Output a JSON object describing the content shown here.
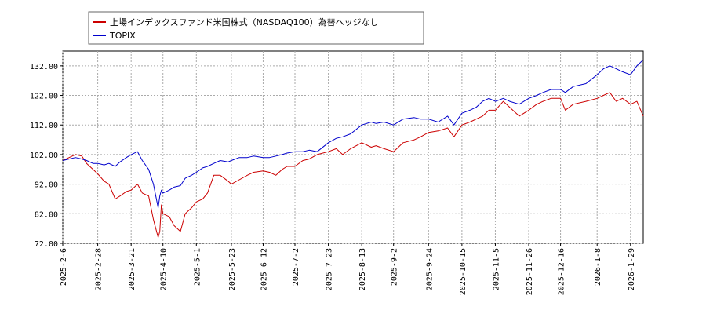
{
  "chart_data": {
    "type": "line",
    "x_ticks": [
      "2025-2-6",
      "2025-2-28",
      "2025-3-21",
      "2025-4-10",
      "2025-5-1",
      "2025-5-23",
      "2025-6-12",
      "2025-7-2",
      "2025-7-23",
      "2025-8-13",
      "2025-9-2",
      "2025-9-24",
      "2025-10-15",
      "2025-11-5",
      "2025-11-26",
      "2025-12-16",
      "2026-1-8",
      "2026-1-29"
    ],
    "y_ticks": [
      "72.00",
      "82.00",
      "92.00",
      "102.00",
      "112.00",
      "122.00",
      "132.00"
    ],
    "ylim": [
      72,
      137
    ],
    "grid": true,
    "legend_position": "top-left",
    "series": [
      {
        "name": "上場インデックスファンド米国株式（NASDAQ100）為替ヘッジなし",
        "color": "#cc0000",
        "anchors": [
          [
            "2025-2-6",
            100
          ],
          [
            "2025-2-10",
            101
          ],
          [
            "2025-2-14",
            102
          ],
          [
            "2025-2-18",
            101.5
          ],
          [
            "2025-2-21",
            99
          ],
          [
            "2025-2-25",
            97
          ],
          [
            "2025-2-28",
            95.5
          ],
          [
            "2025-3-4",
            93
          ],
          [
            "2025-3-7",
            92
          ],
          [
            "2025-3-11",
            87
          ],
          [
            "2025-3-14",
            88
          ],
          [
            "2025-3-18",
            89.5
          ],
          [
            "2025-3-21",
            90
          ],
          [
            "2025-3-25",
            92
          ],
          [
            "2025-3-28",
            89
          ],
          [
            "2025-4-1",
            88
          ],
          [
            "2025-4-4",
            80
          ],
          [
            "2025-4-7",
            74
          ],
          [
            "2025-4-8",
            76
          ],
          [
            "2025-4-9",
            85
          ],
          [
            "2025-4-10",
            82
          ],
          [
            "2025-4-14",
            81
          ],
          [
            "2025-4-17",
            78
          ],
          [
            "2025-4-21",
            76
          ],
          [
            "2025-4-24",
            82
          ],
          [
            "2025-4-28",
            84
          ],
          [
            "2025-5-1",
            86
          ],
          [
            "2025-5-5",
            87
          ],
          [
            "2025-5-8",
            89
          ],
          [
            "2025-5-12",
            95
          ],
          [
            "2025-5-16",
            95
          ],
          [
            "2025-5-21",
            93
          ],
          [
            "2025-5-23",
            92
          ],
          [
            "2025-5-28",
            93.5
          ],
          [
            "2025-6-2",
            95
          ],
          [
            "2025-6-6",
            96
          ],
          [
            "2025-6-12",
            96.5
          ],
          [
            "2025-6-16",
            96
          ],
          [
            "2025-6-20",
            95
          ],
          [
            "2025-6-24",
            97
          ],
          [
            "2025-6-27",
            98
          ],
          [
            "2025-7-2",
            98
          ],
          [
            "2025-7-7",
            100
          ],
          [
            "2025-7-11",
            100.5
          ],
          [
            "2025-7-16",
            102
          ],
          [
            "2025-7-23",
            103
          ],
          [
            "2025-7-28",
            104
          ],
          [
            "2025-8-1",
            102
          ],
          [
            "2025-8-6",
            104
          ],
          [
            "2025-8-13",
            106
          ],
          [
            "2025-8-19",
            104.5
          ],
          [
            "2025-8-22",
            105
          ],
          [
            "2025-8-27",
            104
          ],
          [
            "2025-9-2",
            103
          ],
          [
            "2025-9-8",
            106
          ],
          [
            "2025-9-15",
            107
          ],
          [
            "2025-9-19",
            108
          ],
          [
            "2025-9-24",
            109.5
          ],
          [
            "2025-9-30",
            110
          ],
          [
            "2025-10-6",
            111
          ],
          [
            "2025-10-10",
            108
          ],
          [
            "2025-10-15",
            112
          ],
          [
            "2025-10-20",
            113
          ],
          [
            "2025-10-24",
            114
          ],
          [
            "2025-10-28",
            115
          ],
          [
            "2025-11-1",
            117
          ],
          [
            "2025-11-5",
            117
          ],
          [
            "2025-11-10",
            120
          ],
          [
            "2025-11-14",
            118
          ],
          [
            "2025-11-20",
            115
          ],
          [
            "2025-11-26",
            117
          ],
          [
            "2025-12-1",
            119
          ],
          [
            "2025-12-5",
            120
          ],
          [
            "2025-12-10",
            121
          ],
          [
            "2025-12-16",
            121
          ],
          [
            "2025-12-19",
            117
          ],
          [
            "2025-12-24",
            119
          ],
          [
            "2026-1-1",
            120
          ],
          [
            "2026-1-8",
            121
          ],
          [
            "2026-1-12",
            122
          ],
          [
            "2026-1-16",
            123
          ],
          [
            "2026-1-20",
            120
          ],
          [
            "2026-1-24",
            121
          ],
          [
            "2026-1-29",
            119
          ],
          [
            "2026-2-2",
            120
          ],
          [
            "2026-2-6",
            115
          ]
        ]
      },
      {
        "name": "TOPIX",
        "color": "#0000cc",
        "anchors": [
          [
            "2025-2-6",
            100
          ],
          [
            "2025-2-10",
            100.5
          ],
          [
            "2025-2-14",
            101
          ],
          [
            "2025-2-18",
            100.5
          ],
          [
            "2025-2-21",
            100
          ],
          [
            "2025-2-25",
            99
          ],
          [
            "2025-2-28",
            99
          ],
          [
            "2025-3-4",
            98.5
          ],
          [
            "2025-3-7",
            99
          ],
          [
            "2025-3-11",
            98
          ],
          [
            "2025-3-14",
            99.5
          ],
          [
            "2025-3-18",
            101
          ],
          [
            "2025-3-21",
            102
          ],
          [
            "2025-3-25",
            103
          ],
          [
            "2025-3-28",
            100
          ],
          [
            "2025-4-1",
            97
          ],
          [
            "2025-4-4",
            92
          ],
          [
            "2025-4-7",
            84
          ],
          [
            "2025-4-8",
            88
          ],
          [
            "2025-4-9",
            90
          ],
          [
            "2025-4-10",
            89
          ],
          [
            "2025-4-14",
            90
          ],
          [
            "2025-4-17",
            91
          ],
          [
            "2025-4-21",
            91.5
          ],
          [
            "2025-4-24",
            94
          ],
          [
            "2025-4-28",
            95
          ],
          [
            "2025-5-1",
            96
          ],
          [
            "2025-5-5",
            97.5
          ],
          [
            "2025-5-8",
            98
          ],
          [
            "2025-5-12",
            99
          ],
          [
            "2025-5-16",
            100
          ],
          [
            "2025-5-21",
            99.5
          ],
          [
            "2025-5-23",
            100
          ],
          [
            "2025-5-28",
            101
          ],
          [
            "2025-6-2",
            101
          ],
          [
            "2025-6-6",
            101.5
          ],
          [
            "2025-6-12",
            101
          ],
          [
            "2025-6-16",
            101
          ],
          [
            "2025-6-20",
            101.5
          ],
          [
            "2025-6-24",
            102
          ],
          [
            "2025-6-27",
            102.5
          ],
          [
            "2025-7-2",
            103
          ],
          [
            "2025-7-7",
            103
          ],
          [
            "2025-7-11",
            103.5
          ],
          [
            "2025-7-16",
            103
          ],
          [
            "2025-7-23",
            106
          ],
          [
            "2025-7-28",
            107.5
          ],
          [
            "2025-8-1",
            108
          ],
          [
            "2025-8-6",
            109
          ],
          [
            "2025-8-13",
            112
          ],
          [
            "2025-8-19",
            113
          ],
          [
            "2025-8-22",
            112.5
          ],
          [
            "2025-8-27",
            113
          ],
          [
            "2025-9-2",
            112
          ],
          [
            "2025-9-8",
            114
          ],
          [
            "2025-9-15",
            114.5
          ],
          [
            "2025-9-19",
            114
          ],
          [
            "2025-9-24",
            114
          ],
          [
            "2025-9-30",
            113
          ],
          [
            "2025-10-6",
            115
          ],
          [
            "2025-10-10",
            112
          ],
          [
            "2025-10-15",
            116
          ],
          [
            "2025-10-20",
            117
          ],
          [
            "2025-10-24",
            118
          ],
          [
            "2025-10-28",
            120
          ],
          [
            "2025-11-1",
            121
          ],
          [
            "2025-11-5",
            120
          ],
          [
            "2025-11-10",
            121
          ],
          [
            "2025-11-14",
            120
          ],
          [
            "2025-11-20",
            119
          ],
          [
            "2025-11-26",
            121
          ],
          [
            "2025-12-1",
            122
          ],
          [
            "2025-12-5",
            123
          ],
          [
            "2025-12-10",
            124
          ],
          [
            "2025-12-16",
            124
          ],
          [
            "2025-12-19",
            123
          ],
          [
            "2025-12-24",
            125
          ],
          [
            "2026-1-1",
            126
          ],
          [
            "2026-1-8",
            129
          ],
          [
            "2026-1-12",
            131
          ],
          [
            "2026-1-16",
            132
          ],
          [
            "2026-1-20",
            131
          ],
          [
            "2026-1-24",
            130
          ],
          [
            "2026-1-29",
            129
          ],
          [
            "2026-2-2",
            132
          ],
          [
            "2026-2-6",
            134
          ]
        ]
      }
    ]
  }
}
